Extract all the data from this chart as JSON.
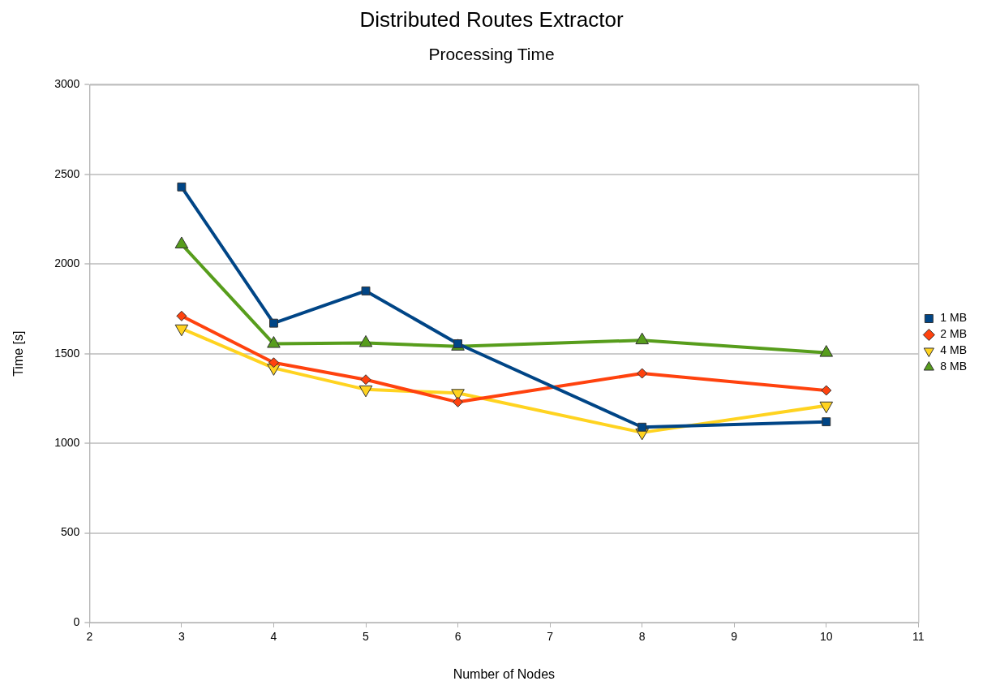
{
  "chart_data": {
    "type": "line",
    "title": "Distributed Routes Extractor",
    "subtitle": "Processing Time",
    "xlabel": "Number of Nodes",
    "ylabel": "Time [s]",
    "x": [
      3,
      4,
      5,
      6,
      8,
      10
    ],
    "series": [
      {
        "name": "1 MB",
        "color": "#004586",
        "marker": "square",
        "values": [
          2430,
          1670,
          1850,
          1555,
          1090,
          1120
        ]
      },
      {
        "name": "2 MB",
        "color": "#ff420e",
        "marker": "diamond",
        "values": [
          1710,
          1450,
          1355,
          1230,
          1390,
          1295
        ]
      },
      {
        "name": "4 MB",
        "color": "#ffd320",
        "marker": "triangle-down",
        "values": [
          1640,
          1420,
          1300,
          1280,
          1060,
          1210
        ]
      },
      {
        "name": "8 MB",
        "color": "#579d1c",
        "marker": "triangle",
        "values": [
          2110,
          1555,
          1560,
          1540,
          1575,
          1505
        ]
      }
    ],
    "xlim": [
      2,
      11
    ],
    "xticks": [
      2,
      3,
      4,
      5,
      6,
      7,
      8,
      9,
      10,
      11
    ],
    "ylim": [
      0,
      3000
    ],
    "yticks": [
      0,
      500,
      1000,
      1500,
      2000,
      2500,
      3000
    ],
    "grid": "y",
    "legend": "right"
  }
}
